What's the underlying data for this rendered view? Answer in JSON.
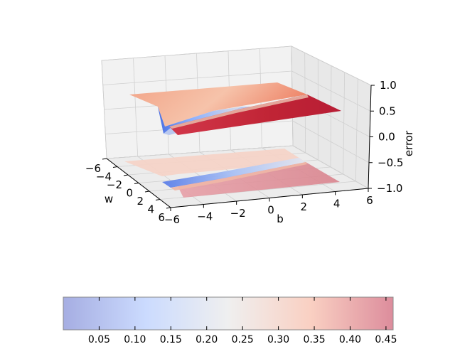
{
  "chart_data": {
    "type": "surface3d",
    "title": "",
    "x_axis": {
      "label": "b",
      "range": [
        -6,
        6
      ],
      "ticks": [
        "−6",
        "−4",
        "−2",
        "0",
        "2",
        "4",
        "6"
      ]
    },
    "y_axis": {
      "label": "w",
      "range": [
        -6,
        6
      ],
      "ticks": [
        "−6",
        "−4",
        "−2",
        "0",
        "2",
        "4",
        "6"
      ]
    },
    "z_axis": {
      "label": "error",
      "range": [
        -1.0,
        1.0
      ],
      "ticks": [
        "−1.0",
        "−0.5",
        "0.0",
        "0.5",
        "1.0"
      ]
    },
    "surface": {
      "description_function": "logistic error surface over (w, b)",
      "grid_w": [
        -6,
        -4,
        -2,
        0,
        2,
        4,
        6
      ],
      "grid_b": [
        -6,
        -4,
        -2,
        0,
        2,
        4,
        6
      ],
      "z_min": 0.0,
      "z_max": 0.5
    },
    "contour_offset_z": -1.0,
    "colormap": "coolwarm",
    "colorbar": {
      "orientation": "horizontal",
      "range": [
        0.0,
        0.46
      ],
      "ticks": [
        "0.05",
        "0.10",
        "0.15",
        "0.20",
        "0.25",
        "0.30",
        "0.35",
        "0.40",
        "0.45"
      ],
      "tick_values": [
        0.05,
        0.1,
        0.15,
        0.2,
        0.25,
        0.3,
        0.35,
        0.4,
        0.45
      ]
    },
    "grid": true
  }
}
